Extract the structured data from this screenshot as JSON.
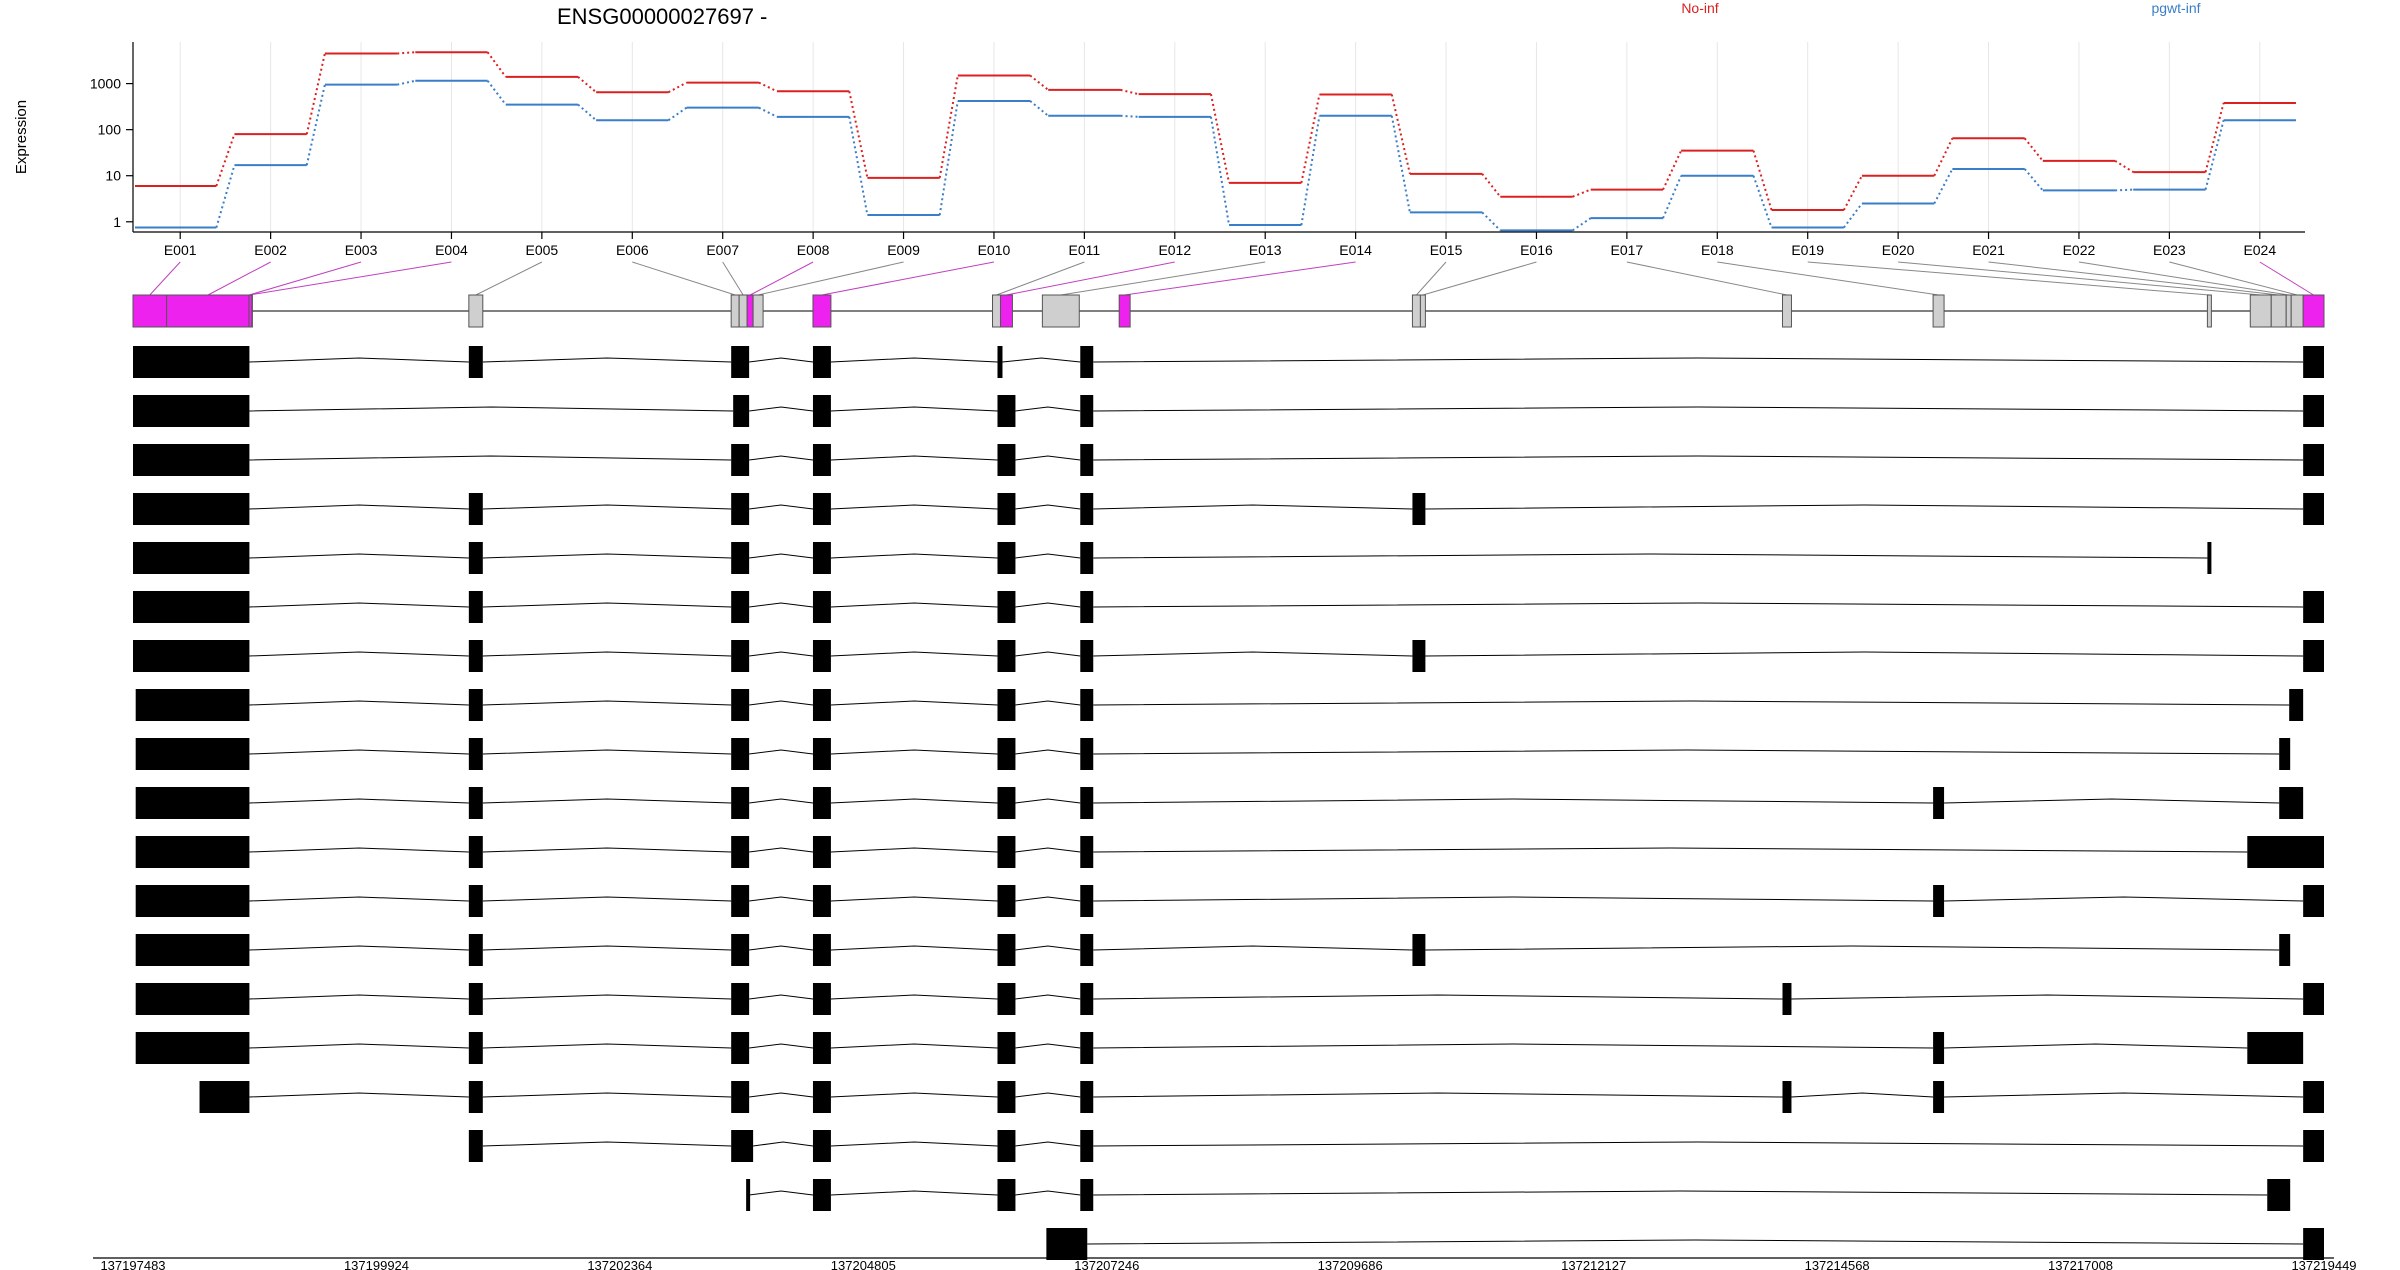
{
  "chart_data": {
    "type": "line",
    "title": "ENSG00000027697 -",
    "ylabel": "Expression",
    "y_scale": "log10",
    "ylim": [
      0.6,
      8000
    ],
    "y_ticks": [
      1,
      10,
      100,
      1000
    ],
    "y_tick_labels": [
      "1",
      "10",
      "100",
      "1000"
    ],
    "grid": "vertical lines at exon bin centres",
    "legend_position": "top, horizontal",
    "categories": [
      "E001",
      "E002",
      "E003",
      "E004",
      "E005",
      "E006",
      "E007",
      "E008",
      "E009",
      "E010",
      "E011",
      "E012",
      "E013",
      "E014",
      "E015",
      "E016",
      "E017",
      "E018",
      "E019",
      "E020",
      "E021",
      "E022",
      "E023",
      "E024"
    ],
    "series": [
      {
        "name": "No-inf",
        "color": "#dc2020",
        "values": [
          6,
          80,
          4500,
          4800,
          1400,
          650,
          1050,
          680,
          9,
          1500,
          730,
          590,
          7,
          580,
          11,
          3.5,
          5,
          35,
          1.8,
          10,
          65,
          21,
          12,
          380
        ]
      },
      {
        "name": "pgwt-inf",
        "color": "#3a7dc8",
        "values": [
          0.75,
          17,
          950,
          1150,
          350,
          160,
          300,
          190,
          1.4,
          420,
          200,
          190,
          0.85,
          200,
          1.6,
          0.65,
          1.2,
          10,
          0.75,
          2.5,
          14,
          4.8,
          5,
          160
        ]
      }
    ],
    "gene_model": {
      "exon_bins": [
        {
          "id": "E001",
          "start": 137197483,
          "end": 137197820,
          "highlight": true
        },
        {
          "id": "E002",
          "start": 137197820,
          "end": 137198650,
          "highlight": true
        },
        {
          "id": "E003",
          "start": 137198650,
          "end": 137198645,
          "highlight": true
        },
        {
          "id": "E004",
          "start": 137198645,
          "end": 137198660,
          "highlight": true
        },
        {
          "id": "E005",
          "start": 137200850,
          "end": 137200990,
          "highlight": false
        },
        {
          "id": "E006",
          "start": 137203480,
          "end": 137203560,
          "highlight": false
        },
        {
          "id": "E007",
          "start": 137203560,
          "end": 137203640,
          "highlight": false
        },
        {
          "id": "E008",
          "start": 137203640,
          "end": 137203700,
          "highlight": true
        },
        {
          "id": "E009",
          "start": 137203700,
          "end": 137203800,
          "highlight": false
        },
        {
          "id": "E010",
          "start": 137204300,
          "end": 137204480,
          "highlight": true
        },
        {
          "id": "E011",
          "start": 137206100,
          "end": 137206180,
          "highlight": false
        },
        {
          "id": "E012",
          "start": 137206180,
          "end": 137206300,
          "highlight": true
        },
        {
          "id": "E013",
          "start": 137206600,
          "end": 137206970,
          "highlight": false
        },
        {
          "id": "E014",
          "start": 137207370,
          "end": 137207480,
          "highlight": true
        },
        {
          "id": "E015",
          "start": 137210310,
          "end": 137210390,
          "highlight": false
        },
        {
          "id": "E016",
          "start": 137210390,
          "end": 137210440,
          "highlight": false
        },
        {
          "id": "E017",
          "start": 137214020,
          "end": 137214110,
          "highlight": false
        },
        {
          "id": "E018",
          "start": 137215530,
          "end": 137215640,
          "highlight": false
        },
        {
          "id": "E019",
          "start": 137218280,
          "end": 137218320,
          "highlight": false
        },
        {
          "id": "E020",
          "start": 137218710,
          "end": 137218920,
          "highlight": false
        },
        {
          "id": "E021",
          "start": 137218920,
          "end": 137219070,
          "highlight": false
        },
        {
          "id": "E022",
          "start": 137219070,
          "end": 137219120,
          "highlight": false
        },
        {
          "id": "E023",
          "start": 137219120,
          "end": 137219240,
          "highlight": false
        },
        {
          "id": "E024",
          "start": 137219240,
          "end": 137219449,
          "highlight": true
        }
      ]
    },
    "transcripts": [
      [
        [
          137197483,
          137198650
        ],
        [
          137200850,
          137200990
        ],
        [
          137203480,
          137203660
        ],
        [
          137204300,
          137204480
        ],
        [
          137206150,
          137206200
        ],
        [
          137206980,
          137207110
        ],
        [
          137219240,
          137219449
        ]
      ],
      [
        [
          137197483,
          137198650
        ],
        [
          137203500,
          137203660
        ],
        [
          137204300,
          137204480
        ],
        [
          137206150,
          137206330
        ],
        [
          137206980,
          137207110
        ],
        [
          137219240,
          137219449
        ]
      ],
      [
        [
          137197483,
          137198650
        ],
        [
          137203480,
          137203660
        ],
        [
          137204300,
          137204480
        ],
        [
          137206150,
          137206330
        ],
        [
          137206980,
          137207110
        ],
        [
          137219240,
          137219449
        ]
      ],
      [
        [
          137197483,
          137198650
        ],
        [
          137200850,
          137200990
        ],
        [
          137203480,
          137203660
        ],
        [
          137204300,
          137204480
        ],
        [
          137206150,
          137206330
        ],
        [
          137206980,
          137207110
        ],
        [
          137210310,
          137210440
        ],
        [
          137219240,
          137219449
        ]
      ],
      [
        [
          137197483,
          137198650
        ],
        [
          137200850,
          137200990
        ],
        [
          137203480,
          137203660
        ],
        [
          137204300,
          137204480
        ],
        [
          137206150,
          137206330
        ],
        [
          137206980,
          137207110
        ],
        [
          137218280,
          137218320
        ]
      ],
      [
        [
          137197483,
          137198650
        ],
        [
          137200850,
          137200990
        ],
        [
          137203480,
          137203660
        ],
        [
          137204300,
          137204480
        ],
        [
          137206150,
          137206330
        ],
        [
          137206980,
          137207110
        ],
        [
          137219240,
          137219449
        ]
      ],
      [
        [
          137197483,
          137198650
        ],
        [
          137200850,
          137200990
        ],
        [
          137203480,
          137203660
        ],
        [
          137204300,
          137204480
        ],
        [
          137206150,
          137206330
        ],
        [
          137206980,
          137207110
        ],
        [
          137210310,
          137210440
        ],
        [
          137219240,
          137219449
        ]
      ],
      [
        [
          137197510,
          137198650
        ],
        [
          137200850,
          137200990
        ],
        [
          137203480,
          137203660
        ],
        [
          137204300,
          137204480
        ],
        [
          137206150,
          137206330
        ],
        [
          137206980,
          137207110
        ],
        [
          137219100,
          137219240
        ]
      ],
      [
        [
          137197510,
          137198650
        ],
        [
          137200850,
          137200990
        ],
        [
          137203480,
          137203660
        ],
        [
          137204300,
          137204480
        ],
        [
          137206150,
          137206330
        ],
        [
          137206980,
          137207110
        ],
        [
          137219000,
          137219110
        ]
      ],
      [
        [
          137197510,
          137198650
        ],
        [
          137200850,
          137200990
        ],
        [
          137203480,
          137203660
        ],
        [
          137204300,
          137204480
        ],
        [
          137206150,
          137206330
        ],
        [
          137206980,
          137207110
        ],
        [
          137215530,
          137215640
        ],
        [
          137219000,
          137219240
        ]
      ],
      [
        [
          137197510,
          137198650
        ],
        [
          137200850,
          137200990
        ],
        [
          137203480,
          137203660
        ],
        [
          137204300,
          137204480
        ],
        [
          137206150,
          137206330
        ],
        [
          137206980,
          137207110
        ],
        [
          137218680,
          137219449
        ]
      ],
      [
        [
          137197510,
          137198650
        ],
        [
          137200850,
          137200990
        ],
        [
          137203480,
          137203660
        ],
        [
          137204300,
          137204480
        ],
        [
          137206150,
          137206330
        ],
        [
          137206980,
          137207110
        ],
        [
          137215530,
          137215640
        ],
        [
          137219240,
          137219449
        ]
      ],
      [
        [
          137197510,
          137198650
        ],
        [
          137200850,
          137200990
        ],
        [
          137203480,
          137203660
        ],
        [
          137204300,
          137204480
        ],
        [
          137206150,
          137206330
        ],
        [
          137206980,
          137207110
        ],
        [
          137210310,
          137210440
        ],
        [
          137219000,
          137219110
        ]
      ],
      [
        [
          137197510,
          137198650
        ],
        [
          137200850,
          137200990
        ],
        [
          137203480,
          137203660
        ],
        [
          137204300,
          137204480
        ],
        [
          137206150,
          137206330
        ],
        [
          137206980,
          137207110
        ],
        [
          137214020,
          137214110
        ],
        [
          137219240,
          137219449
        ]
      ],
      [
        [
          137197510,
          137198650
        ],
        [
          137200850,
          137200990
        ],
        [
          137203480,
          137203660
        ],
        [
          137204300,
          137204480
        ],
        [
          137206150,
          137206330
        ],
        [
          137206980,
          137207110
        ],
        [
          137215530,
          137215640
        ],
        [
          137218680,
          137219240
        ]
      ],
      [
        [
          137198150,
          137198650
        ],
        [
          137200850,
          137200990
        ],
        [
          137203480,
          137203660
        ],
        [
          137204300,
          137204480
        ],
        [
          137206150,
          137206330
        ],
        [
          137206980,
          137207110
        ],
        [
          137214020,
          137214110
        ],
        [
          137215530,
          137215640
        ],
        [
          137219240,
          137219449
        ]
      ],
      [
        [
          137200850,
          137200990
        ],
        [
          137203480,
          137203700
        ],
        [
          137204300,
          137204480
        ],
        [
          137206150,
          137206330
        ],
        [
          137206980,
          137207110
        ],
        [
          137219240,
          137219449
        ]
      ],
      [
        [
          137203630,
          137203660
        ],
        [
          137204300,
          137204480
        ],
        [
          137206150,
          137206330
        ],
        [
          137206980,
          137207110
        ],
        [
          137218880,
          137219110
        ]
      ],
      [
        [
          137206640,
          137207050
        ],
        [
          137219240,
          137219449
        ]
      ]
    ],
    "x_ticks": [
      137197483,
      137199924,
      137202364,
      137204805,
      137207246,
      137209686,
      137212127,
      137214568,
      137217008,
      137219449
    ],
    "x_tick_labels": [
      "137197483",
      "137199924",
      "137202364",
      "137204805",
      "137207246",
      "137209686",
      "137212127",
      "137214568",
      "137217008",
      "137219449"
    ]
  }
}
